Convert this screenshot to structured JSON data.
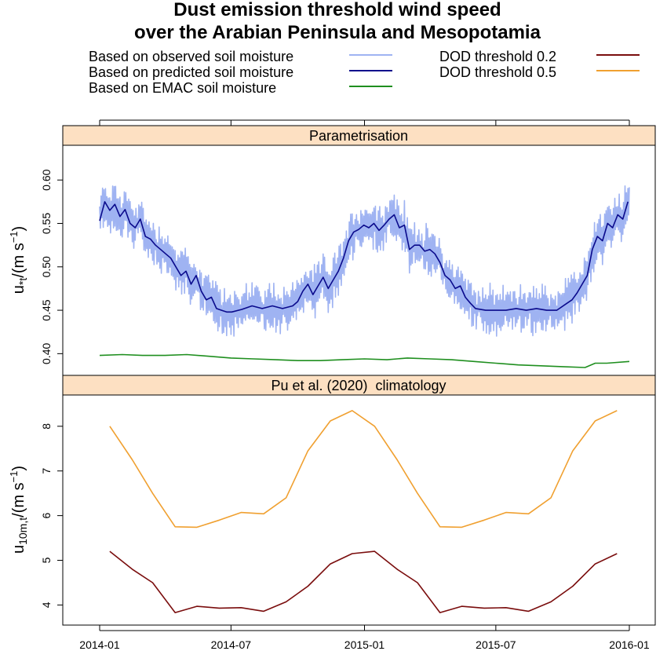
{
  "title_lines": [
    "Dust emission threshold wind speed",
    "over the Arabian Peninsula and Mesopotamia"
  ],
  "colors": {
    "observed": "#9fb3f2",
    "predicted": "#0a0a8c",
    "emac": "#1f8f1f",
    "dod02": "#7a0d0d",
    "dod05": "#f0a030",
    "strip_fill": "#fde0c2",
    "panel_border": "#000000"
  },
  "legend": {
    "items": [
      {
        "label": "Based on observed soil moisture",
        "color": "#9fb3f2"
      },
      {
        "label": "Based on predicted soil moisture",
        "color": "#0a0a8c"
      },
      {
        "label": "Based on EMAC soil moisture",
        "color": "#1f8f1f"
      },
      {
        "label": "DOD threshold 0.2",
        "color": "#7a0d0d"
      },
      {
        "label": "DOD threshold 0.5",
        "color": "#f0a030"
      }
    ]
  },
  "chart_data": [
    {
      "type": "line",
      "panel_label": "Parametrisation",
      "ylabel": {
        "base": "u",
        "sub": "*t",
        "unit": "/(m s",
        "sup": "−1",
        "close": ")"
      },
      "yticks": [
        "0.40",
        "0.45",
        "0.50",
        "0.55",
        "0.60"
      ],
      "ytick_values": [
        0.4,
        0.45,
        0.5,
        0.55,
        0.6
      ],
      "ylim": [
        0.375,
        0.64
      ],
      "xlim": [
        "2014-01-01",
        "2016-01-01"
      ],
      "series": [
        {
          "name": "Based on predicted soil moisture",
          "color": "#0a0a8c",
          "x": [
            "2014-01-01",
            "2014-01-08",
            "2014-01-15",
            "2014-01-22",
            "2014-01-29",
            "2014-02-05",
            "2014-02-12",
            "2014-02-19",
            "2014-02-26",
            "2014-03-05",
            "2014-03-12",
            "2014-03-19",
            "2014-03-26",
            "2014-04-02",
            "2014-04-09",
            "2014-04-16",
            "2014-04-23",
            "2014-04-30",
            "2014-05-07",
            "2014-05-14",
            "2014-05-21",
            "2014-05-28",
            "2014-06-04",
            "2014-06-11",
            "2014-06-18",
            "2014-06-25",
            "2014-07-02",
            "2014-07-16",
            "2014-07-30",
            "2014-08-13",
            "2014-08-27",
            "2014-09-10",
            "2014-09-24",
            "2014-10-01",
            "2014-10-08",
            "2014-10-15",
            "2014-10-22",
            "2014-10-29",
            "2014-11-05",
            "2014-11-12",
            "2014-11-19",
            "2014-11-26",
            "2014-12-03",
            "2014-12-10",
            "2014-12-17",
            "2014-12-24",
            "2014-12-31",
            "2015-01-07",
            "2015-01-14",
            "2015-01-21",
            "2015-01-28",
            "2015-02-04",
            "2015-02-11",
            "2015-02-18",
            "2015-02-25",
            "2015-03-04",
            "2015-03-11",
            "2015-03-18",
            "2015-03-25",
            "2015-04-01",
            "2015-04-08",
            "2015-04-15",
            "2015-04-22",
            "2015-04-29",
            "2015-05-06",
            "2015-05-13",
            "2015-05-20",
            "2015-05-27",
            "2015-06-03",
            "2015-06-17",
            "2015-07-01",
            "2015-07-15",
            "2015-07-29",
            "2015-08-12",
            "2015-08-26",
            "2015-09-09",
            "2015-09-23",
            "2015-10-07",
            "2015-10-14",
            "2015-10-21",
            "2015-10-28",
            "2015-11-04",
            "2015-11-11",
            "2015-11-18",
            "2015-11-25",
            "2015-12-02",
            "2015-12-09",
            "2015-12-16",
            "2015-12-23",
            "2015-12-30"
          ],
          "values": [
            0.553,
            0.575,
            0.565,
            0.572,
            0.558,
            0.566,
            0.55,
            0.545,
            0.555,
            0.535,
            0.532,
            0.525,
            0.52,
            0.515,
            0.51,
            0.5,
            0.49,
            0.495,
            0.48,
            0.49,
            0.472,
            0.462,
            0.465,
            0.452,
            0.45,
            0.448,
            0.448,
            0.451,
            0.455,
            0.452,
            0.455,
            0.452,
            0.455,
            0.46,
            0.472,
            0.48,
            0.468,
            0.478,
            0.488,
            0.475,
            0.485,
            0.495,
            0.51,
            0.53,
            0.54,
            0.543,
            0.548,
            0.545,
            0.55,
            0.542,
            0.548,
            0.555,
            0.56,
            0.545,
            0.548,
            0.52,
            0.525,
            0.525,
            0.518,
            0.52,
            0.515,
            0.505,
            0.49,
            0.485,
            0.475,
            0.478,
            0.465,
            0.458,
            0.452,
            0.45,
            0.45,
            0.45,
            0.452,
            0.45,
            0.452,
            0.45,
            0.45,
            0.458,
            0.462,
            0.47,
            0.48,
            0.49,
            0.52,
            0.535,
            0.53,
            0.55,
            0.545,
            0.56,
            0.555,
            0.575
          ]
        },
        {
          "name": "Based on EMAC soil moisture",
          "color": "#1f8f1f",
          "x": [
            "2014-01-01",
            "2014-02-01",
            "2014-03-01",
            "2014-04-01",
            "2014-05-01",
            "2014-06-01",
            "2014-07-01",
            "2014-08-01",
            "2014-09-01",
            "2014-10-01",
            "2014-11-01",
            "2014-12-01",
            "2015-01-01",
            "2015-02-01",
            "2015-03-01",
            "2015-04-01",
            "2015-05-01",
            "2015-06-01",
            "2015-07-01",
            "2015-08-01",
            "2015-09-01",
            "2015-10-01",
            "2015-11-01",
            "2015-11-15",
            "2015-12-01",
            "2016-01-01"
          ],
          "values": [
            0.398,
            0.399,
            0.398,
            0.398,
            0.399,
            0.397,
            0.395,
            0.394,
            0.393,
            0.392,
            0.392,
            0.393,
            0.394,
            0.393,
            0.395,
            0.394,
            0.393,
            0.391,
            0.389,
            0.387,
            0.386,
            0.385,
            0.384,
            0.389,
            0.389,
            0.391
          ]
        }
      ],
      "noisy_series": {
        "name": "Based on observed soil moisture",
        "color": "#9fb3f2",
        "center_series": "Based on predicted soil moisture",
        "amplitude": 0.025,
        "samples": 730
      }
    },
    {
      "type": "line",
      "panel_label": "Pu et al. (2020)  climatology",
      "ylabel": {
        "base": "u",
        "sub": "10m,t",
        "unit": "/(m s",
        "sup": "−1",
        "close": ")"
      },
      "yticks": [
        "4",
        "5",
        "6",
        "7",
        "8"
      ],
      "ytick_values": [
        4,
        5,
        6,
        7,
        8
      ],
      "ylim": [
        3.55,
        8.7
      ],
      "xticks": [
        "2014-01",
        "2014-07",
        "2015-01",
        "2015-07",
        "2016-01"
      ],
      "xlim": [
        "2014-01-01",
        "2016-01-01"
      ],
      "series": [
        {
          "name": "DOD threshold 0.5",
          "color": "#f0a030",
          "x": [
            "2014-01-15",
            "2014-02-15",
            "2014-03-15",
            "2014-04-15",
            "2014-05-15",
            "2014-06-15",
            "2014-07-15",
            "2014-08-15",
            "2014-09-15",
            "2014-10-15",
            "2014-11-15",
            "2014-12-15",
            "2015-01-15",
            "2015-02-15",
            "2015-03-15",
            "2015-04-15",
            "2015-05-15",
            "2015-06-15",
            "2015-07-15",
            "2015-08-15",
            "2015-09-15",
            "2015-10-15",
            "2015-11-15",
            "2015-12-15"
          ],
          "values": [
            8.0,
            7.25,
            6.5,
            5.75,
            5.74,
            5.9,
            6.07,
            6.04,
            6.4,
            7.45,
            8.12,
            8.35,
            8.0,
            7.25,
            6.5,
            5.75,
            5.74,
            5.9,
            6.07,
            6.04,
            6.4,
            7.45,
            8.12,
            8.35
          ]
        },
        {
          "name": "DOD threshold 0.2",
          "color": "#7a0d0d",
          "x": [
            "2014-01-15",
            "2014-02-15",
            "2014-03-15",
            "2014-04-15",
            "2014-05-15",
            "2014-06-15",
            "2014-07-15",
            "2014-08-15",
            "2014-09-15",
            "2014-10-15",
            "2014-11-15",
            "2014-12-15",
            "2015-01-15",
            "2015-02-15",
            "2015-03-15",
            "2015-04-15",
            "2015-05-15",
            "2015-06-15",
            "2015-07-15",
            "2015-08-15",
            "2015-09-15",
            "2015-10-15",
            "2015-11-15",
            "2015-12-15"
          ],
          "values": [
            5.2,
            4.8,
            4.5,
            3.83,
            3.97,
            3.93,
            3.94,
            3.86,
            4.07,
            4.42,
            4.92,
            5.15,
            5.2,
            4.8,
            4.5,
            3.83,
            3.97,
            3.93,
            3.94,
            3.86,
            4.07,
            4.42,
            4.92,
            5.15
          ]
        }
      ]
    }
  ]
}
